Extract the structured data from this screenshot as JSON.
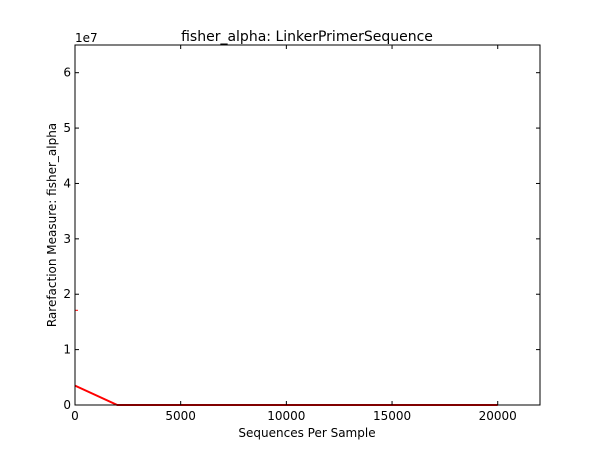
{
  "chart_data": {
    "type": "line",
    "title": "fisher_alpha: LinkerPrimerSequence",
    "xlabel": "Sequences Per Sample",
    "ylabel": "Rarefaction Measure: fisher_alpha",
    "y_scale_label": "1e7",
    "xlim": [
      0,
      22000
    ],
    "ylim": [
      0,
      65000000
    ],
    "x_ticks": [
      0,
      5000,
      10000,
      15000,
      20000
    ],
    "x_tick_labels": [
      "0",
      "5000",
      "10000",
      "15000",
      "20000"
    ],
    "y_ticks": [
      0,
      10000000,
      20000000,
      30000000,
      40000000,
      50000000,
      60000000
    ],
    "y_tick_labels": [
      "0",
      "1",
      "2",
      "3",
      "4",
      "5",
      "6"
    ],
    "grid": false,
    "series": [
      {
        "color": "#ff0000",
        "x": [
          1,
          2000,
          4000,
          6000,
          8000,
          10000,
          12000,
          14000,
          16000,
          18000,
          20000
        ],
        "y": [
          3500000,
          0,
          0,
          0,
          0,
          0,
          0,
          0,
          0,
          0,
          0
        ]
      }
    ],
    "error_bar": {
      "color": "#ff0000",
      "x": 1,
      "y": 17100000
    }
  }
}
